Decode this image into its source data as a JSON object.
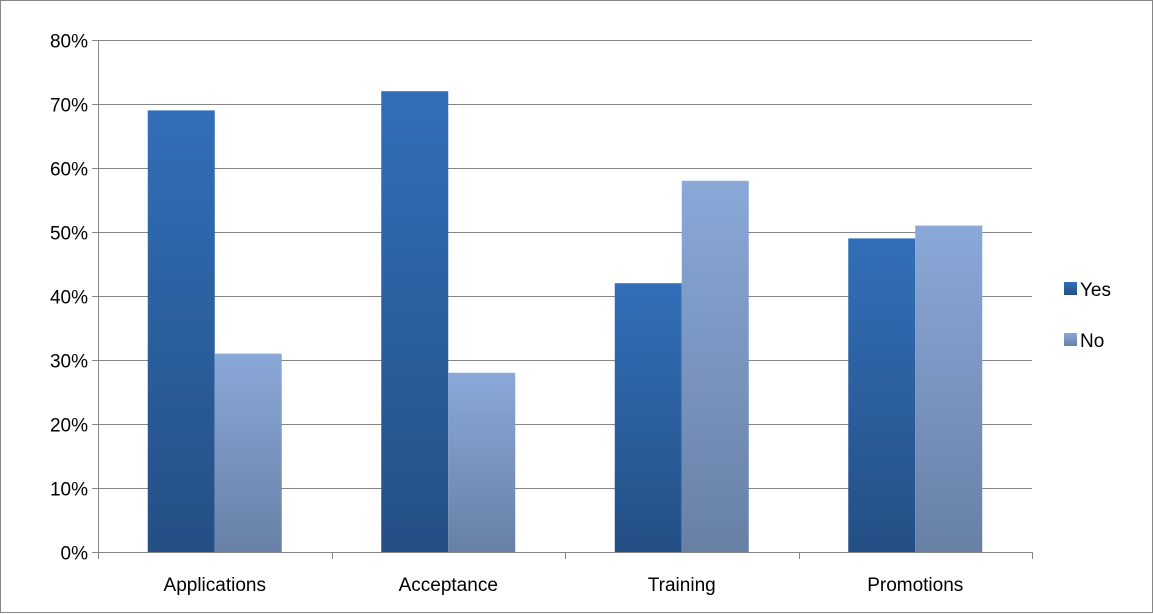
{
  "chart_data": {
    "type": "bar",
    "categories": [
      "Applications",
      "Acceptance",
      "Training",
      "Promotions"
    ],
    "series": [
      {
        "name": "Yes",
        "values": [
          0.69,
          0.72,
          0.42,
          0.49
        ],
        "color": "#2f64a8"
      },
      {
        "name": "No",
        "values": [
          0.31,
          0.28,
          0.58,
          0.51
        ],
        "color": "#87a5d6"
      }
    ],
    "ylim": [
      0,
      0.8
    ],
    "yticks": [
      0,
      0.1,
      0.2,
      0.3,
      0.4,
      0.5,
      0.6,
      0.7,
      0.8
    ],
    "ytick_labels": [
      "0%",
      "10%",
      "20%",
      "30%",
      "40%",
      "50%",
      "60%",
      "70%",
      "80%"
    ],
    "grid": true,
    "legend_position": "right"
  }
}
